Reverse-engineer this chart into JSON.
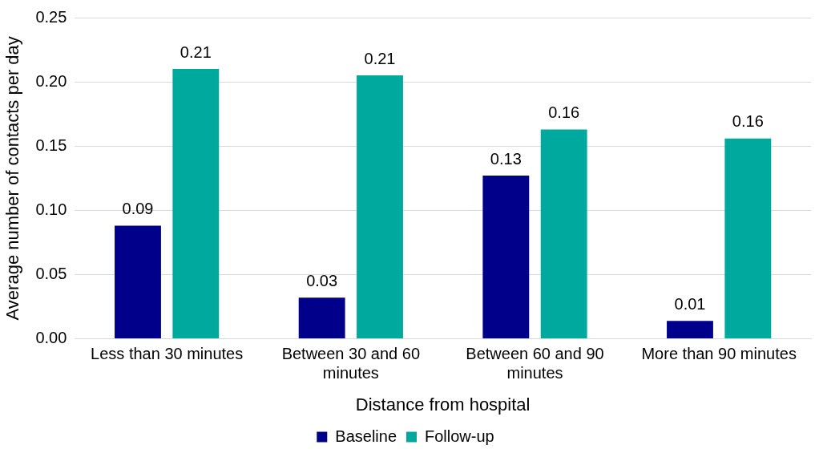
{
  "chart_data": {
    "type": "bar",
    "xlabel": "Distance from hospital",
    "ylabel": "Average number of contacts per day",
    "categories": [
      "Less than 30 minutes",
      "Between 30 and 60 minutes",
      "Between 60 and 90 minutes",
      "More than 90 minutes"
    ],
    "series": [
      {
        "name": "Baseline",
        "color": "#00008b",
        "values": [
          0.088,
          0.032,
          0.127,
          0.014
        ],
        "value_labels": [
          "0.09",
          "0.03",
          "0.13",
          "0.01"
        ]
      },
      {
        "name": "Follow-up",
        "color": "#00a99d",
        "values": [
          0.21,
          0.205,
          0.163,
          0.156
        ],
        "value_labels": [
          "0.21",
          "0.21",
          "0.16",
          "0.16"
        ]
      }
    ],
    "ylim": [
      0,
      0.25
    ],
    "yticks": [
      {
        "value": 0,
        "label": "0.00"
      },
      {
        "value": 0.05,
        "label": "0.05"
      },
      {
        "value": 0.1,
        "label": "0.10"
      },
      {
        "value": 0.15,
        "label": "0.15"
      },
      {
        "value": 0.2,
        "label": "0.20"
      },
      {
        "value": 0.25,
        "label": "0.25"
      }
    ],
    "grid": "y",
    "legend": "bottom"
  }
}
